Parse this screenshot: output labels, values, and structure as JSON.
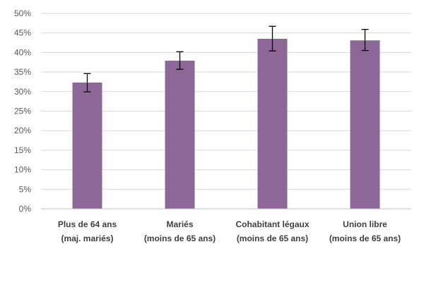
{
  "chart_data": {
    "type": "bar",
    "categories": [
      [
        "Plus de 64 ans",
        "(maj. mariés)"
      ],
      [
        "Mariés",
        "(moins de 65 ans)"
      ],
      [
        "Cohabitant légaux",
        "(moins de 65 ans)"
      ],
      [
        "Union libre",
        "(moins de 65 ans)"
      ]
    ],
    "values": [
      32.3,
      37.9,
      43.5,
      43.1
    ],
    "error_bars": [
      [
        29.9,
        34.6
      ],
      [
        35.7,
        40.2
      ],
      [
        40.4,
        46.7
      ],
      [
        40.5,
        45.9
      ]
    ],
    "ylim": [
      0,
      50
    ],
    "yticks": [
      "0%",
      "5%",
      "10%",
      "15%",
      "20%",
      "25%",
      "30%",
      "35%",
      "40%",
      "45%",
      "50%"
    ],
    "grid": true,
    "bar_color": "#8c6797",
    "title": "",
    "xlabel": "",
    "ylabel": ""
  }
}
